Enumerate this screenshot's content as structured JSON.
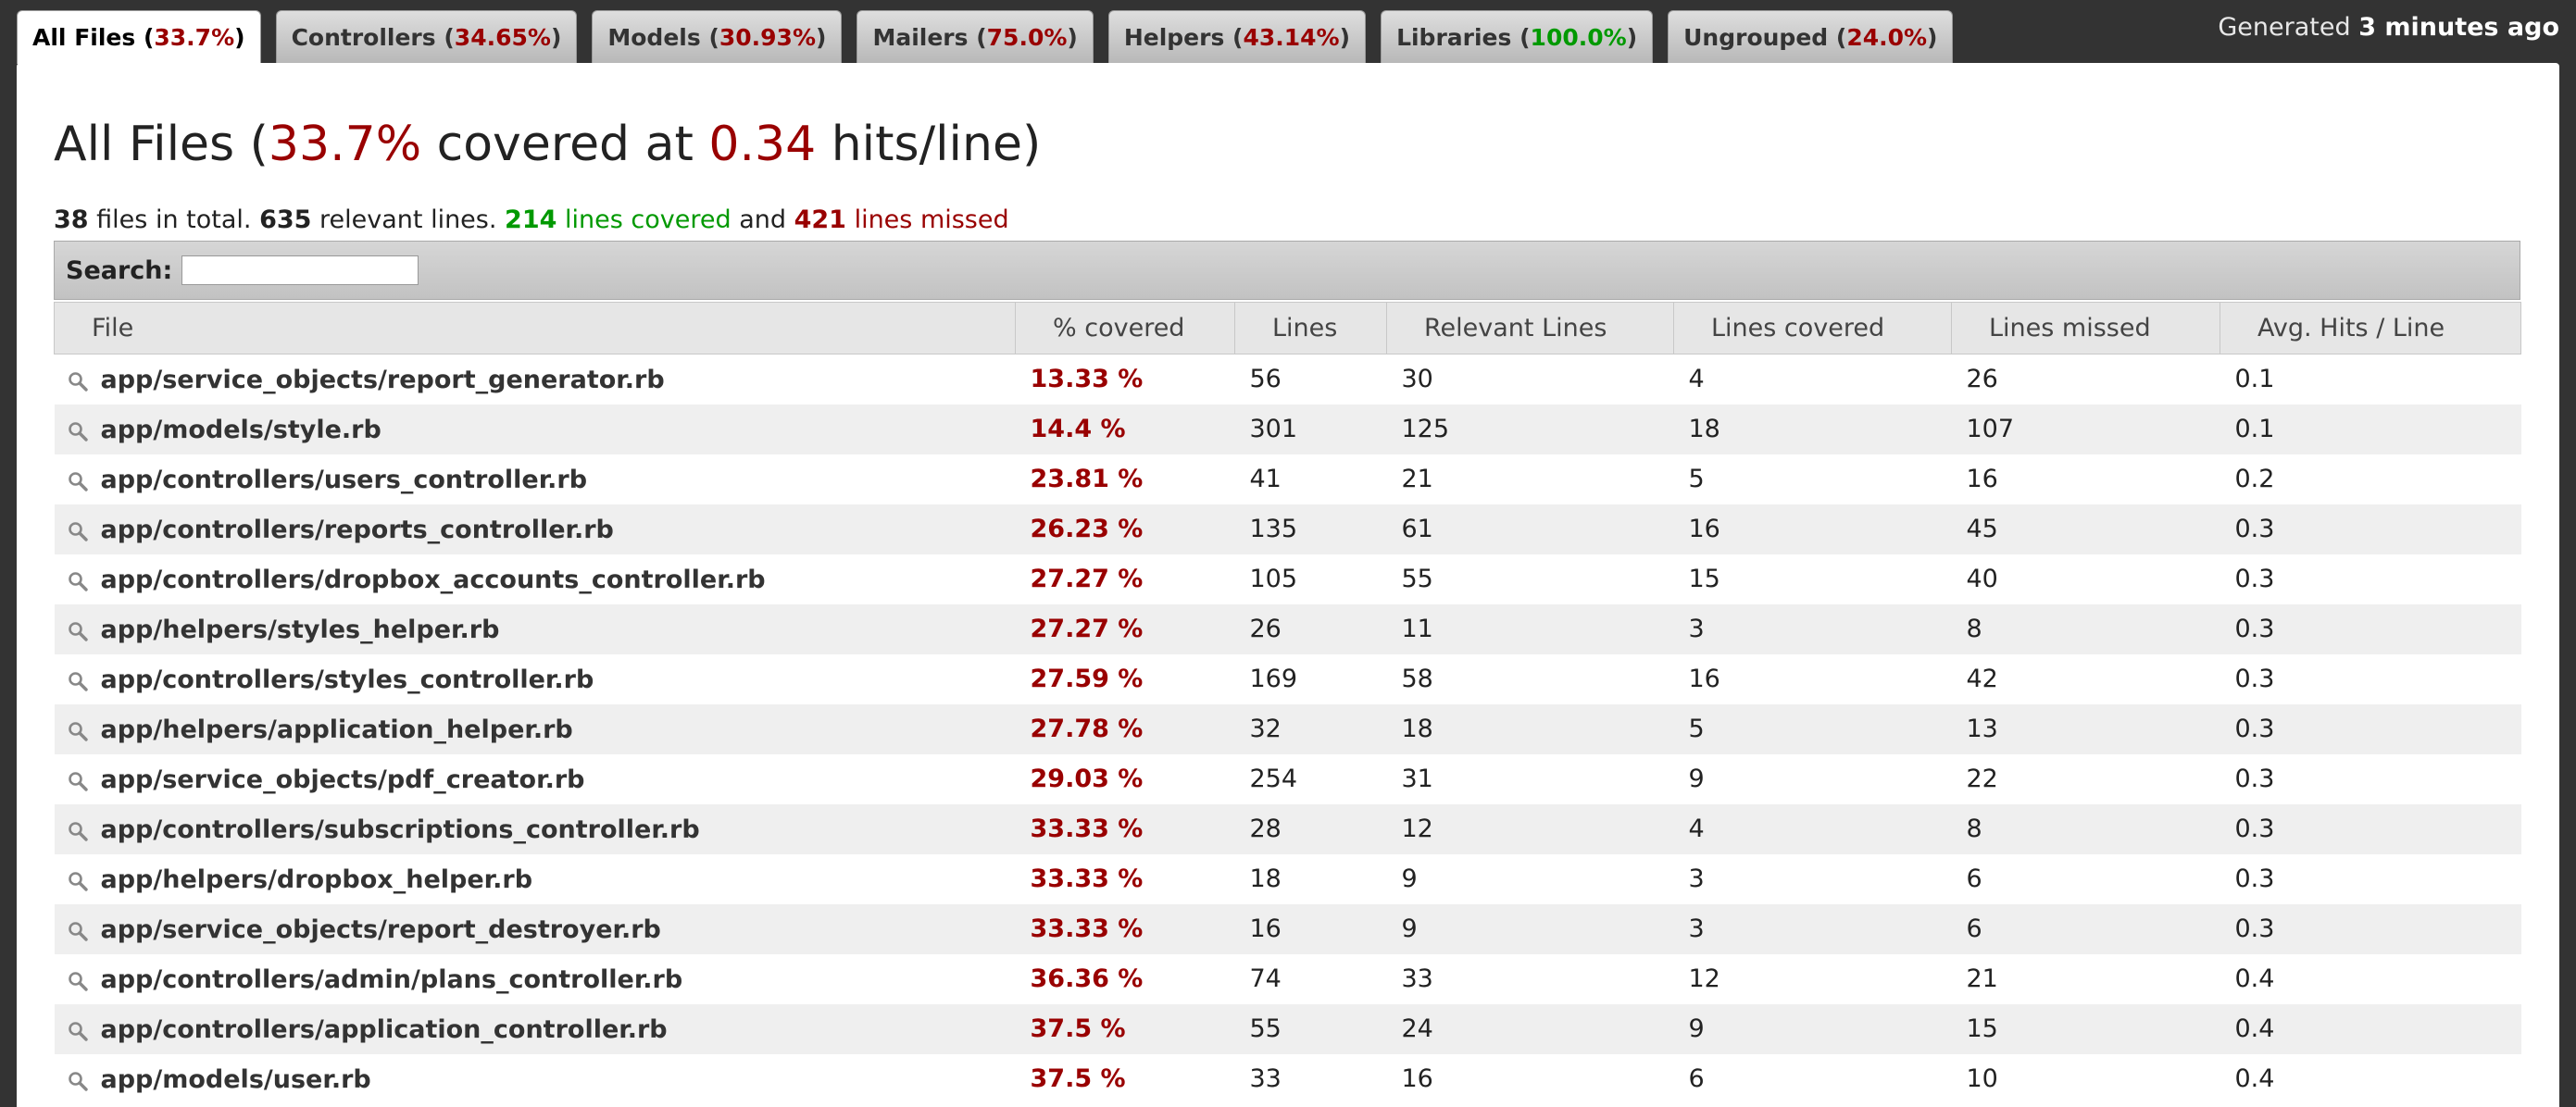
{
  "tabs": [
    {
      "name": "All Files",
      "pct": "33.7%",
      "color": "#990000",
      "active": true
    },
    {
      "name": "Controllers",
      "pct": "34.65%",
      "color": "#990000",
      "active": false
    },
    {
      "name": "Models",
      "pct": "30.93%",
      "color": "#990000",
      "active": false
    },
    {
      "name": "Mailers",
      "pct": "75.0%",
      "color": "#990000",
      "active": false
    },
    {
      "name": "Helpers",
      "pct": "43.14%",
      "color": "#990000",
      "active": false
    },
    {
      "name": "Libraries",
      "pct": "100.0%",
      "color": "#009900",
      "active": false
    },
    {
      "name": "Ungrouped",
      "pct": "24.0%",
      "color": "#990000",
      "active": false
    }
  ],
  "generated": {
    "prefix": "Generated",
    "time": "3 minutes ago"
  },
  "title": {
    "prefix": "All Files (",
    "pct": "33.7%",
    "middle": "covered at",
    "hits": "0.34",
    "suffix": "hits/line)"
  },
  "summary": {
    "files": "38",
    "files_text": "files in total.",
    "relevant": "635",
    "relevant_text": "relevant lines.",
    "covered": "214",
    "covered_text": "lines covered",
    "and_text": "and",
    "missed": "421",
    "missed_text": "lines missed"
  },
  "search": {
    "label": "Search:",
    "value": ""
  },
  "table": {
    "headers": [
      "File",
      "% covered",
      "Lines",
      "Relevant Lines",
      "Lines covered",
      "Lines missed",
      "Avg. Hits / Line"
    ],
    "rows": [
      [
        "app/service_objects/report_generator.rb",
        "13.33 %",
        "56",
        "30",
        "4",
        "26",
        "0.1"
      ],
      [
        "app/models/style.rb",
        "14.4 %",
        "301",
        "125",
        "18",
        "107",
        "0.1"
      ],
      [
        "app/controllers/users_controller.rb",
        "23.81 %",
        "41",
        "21",
        "5",
        "16",
        "0.2"
      ],
      [
        "app/controllers/reports_controller.rb",
        "26.23 %",
        "135",
        "61",
        "16",
        "45",
        "0.3"
      ],
      [
        "app/controllers/dropbox_accounts_controller.rb",
        "27.27 %",
        "105",
        "55",
        "15",
        "40",
        "0.3"
      ],
      [
        "app/helpers/styles_helper.rb",
        "27.27 %",
        "26",
        "11",
        "3",
        "8",
        "0.3"
      ],
      [
        "app/controllers/styles_controller.rb",
        "27.59 %",
        "169",
        "58",
        "16",
        "42",
        "0.3"
      ],
      [
        "app/helpers/application_helper.rb",
        "27.78 %",
        "32",
        "18",
        "5",
        "13",
        "0.3"
      ],
      [
        "app/service_objects/pdf_creator.rb",
        "29.03 %",
        "254",
        "31",
        "9",
        "22",
        "0.3"
      ],
      [
        "app/controllers/subscriptions_controller.rb",
        "33.33 %",
        "28",
        "12",
        "4",
        "8",
        "0.3"
      ],
      [
        "app/helpers/dropbox_helper.rb",
        "33.33 %",
        "18",
        "9",
        "3",
        "6",
        "0.3"
      ],
      [
        "app/service_objects/report_destroyer.rb",
        "33.33 %",
        "16",
        "9",
        "3",
        "6",
        "0.3"
      ],
      [
        "app/controllers/admin/plans_controller.rb",
        "36.36 %",
        "74",
        "33",
        "12",
        "21",
        "0.4"
      ],
      [
        "app/controllers/application_controller.rb",
        "37.5 %",
        "55",
        "24",
        "9",
        "15",
        "0.4"
      ],
      [
        "app/models/user.rb",
        "37.5 %",
        "33",
        "16",
        "6",
        "10",
        "0.4"
      ]
    ]
  }
}
